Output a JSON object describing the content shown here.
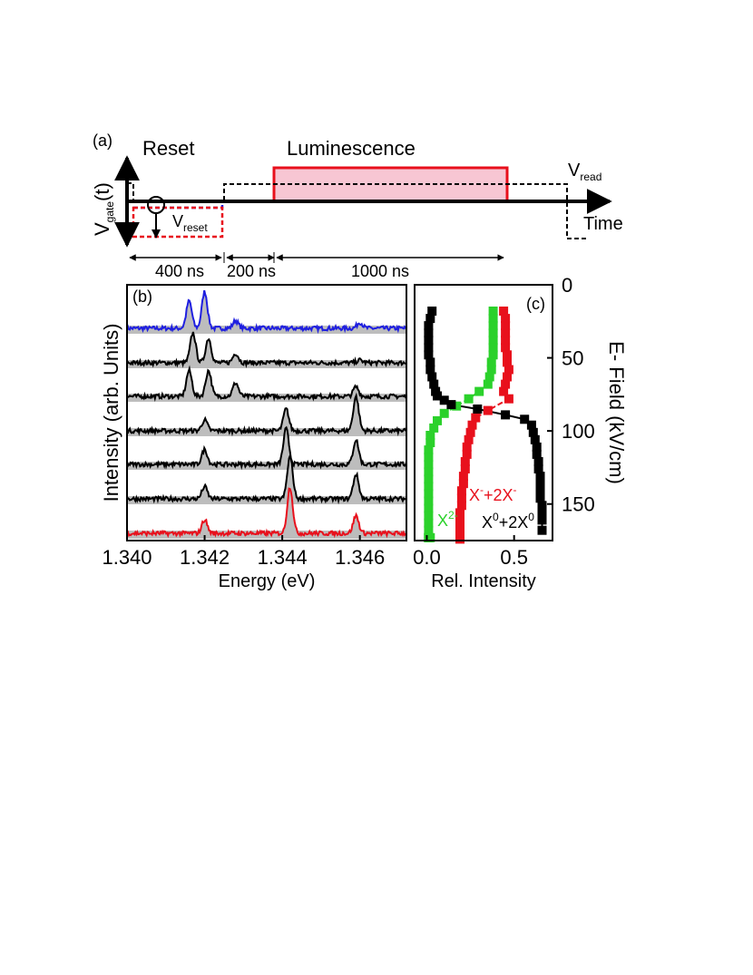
{
  "colors": {
    "blue": "#1f1fe0",
    "red": "#e8101c",
    "green": "#2bd12b",
    "black": "#000000",
    "gray_fill": "#bdbdbd",
    "pink_fill": "#f7c6d3"
  },
  "panel_a": {
    "label": "(a)",
    "reset_title": "Reset",
    "luminescence_title": "Luminescence",
    "y_axis": {
      "main": "V",
      "sub": "gate",
      "tail": "(t)"
    },
    "v_read": {
      "main": "V",
      "sub": "read"
    },
    "v_reset": {
      "main": "V",
      "sub": "reset"
    },
    "time_label": "Time",
    "durations": [
      "400 ns",
      "200 ns",
      "1000 ns"
    ],
    "duration_values_ns": [
      400,
      200,
      1000
    ]
  },
  "chart_data": [
    {
      "type": "line",
      "panel": "(b)",
      "xlabel": "Energy (eV)",
      "ylabel": "Intensity (arb. Units)",
      "xlim": [
        1.34,
        1.3472
      ],
      "x_ticks": [
        "1.340",
        "1.342",
        "1.344",
        "1.346"
      ],
      "x_tick_values": [
        1.34,
        1.342,
        1.344,
        1.346
      ],
      "series": [
        {
          "color": "blue",
          "peaks": [
            [
              1.3416,
              1.0
            ],
            [
              1.342,
              1.35
            ],
            [
              1.3428,
              0.28
            ],
            [
              1.346,
              0.22
            ]
          ]
        },
        {
          "color": "black",
          "peaks": [
            [
              1.3417,
              1.1
            ],
            [
              1.3421,
              0.9
            ],
            [
              1.3428,
              0.35
            ],
            [
              1.346,
              0.1
            ]
          ]
        },
        {
          "color": "black",
          "peaks": [
            [
              1.3416,
              0.95
            ],
            [
              1.3421,
              0.95
            ],
            [
              1.3428,
              0.5
            ],
            [
              1.3459,
              0.35
            ]
          ]
        },
        {
          "color": "black",
          "peaks": [
            [
              1.342,
              0.4
            ],
            [
              1.3441,
              0.8
            ],
            [
              1.3459,
              1.25
            ]
          ]
        },
        {
          "color": "black",
          "peaks": [
            [
              1.342,
              0.55
            ],
            [
              1.3441,
              1.3
            ],
            [
              1.3459,
              0.9
            ]
          ]
        },
        {
          "color": "black",
          "peaks": [
            [
              1.342,
              0.45
            ],
            [
              1.3442,
              1.55
            ],
            [
              1.3459,
              0.9
            ]
          ]
        },
        {
          "color": "red",
          "peaks": [
            [
              1.342,
              0.5
            ],
            [
              1.3442,
              1.7
            ],
            [
              1.3459,
              0.65
            ]
          ]
        }
      ]
    },
    {
      "type": "scatter",
      "panel": "(c)",
      "xlabel": "Rel. Intensity",
      "ylabel": "E- Field (kV/cm)",
      "xlim": [
        -0.07,
        0.72
      ],
      "ylim": [
        0,
        175
      ],
      "y_inverted": true,
      "y_axis_side": "right",
      "x_ticks": [
        "0.0",
        "0.5"
      ],
      "x_tick_values": [
        0.0,
        0.5
      ],
      "y_ticks": [
        "0",
        "50",
        "100",
        "150"
      ],
      "y_tick_values": [
        0,
        50,
        100,
        150
      ],
      "annotations": [
        {
          "color": "red",
          "text": "X",
          "sup": "-",
          "text2": "+2X",
          "sup2": "-"
        },
        {
          "color": "green",
          "text": "X",
          "sup": "2-"
        },
        {
          "color": "black",
          "text": "X",
          "sup": "0",
          "text2": "+2X",
          "sup2": "0"
        }
      ],
      "series": [
        {
          "name": "X2-",
          "color": "green",
          "x": [
            0.38,
            0.38,
            0.38,
            0.38,
            0.38,
            0.38,
            0.38,
            0.37,
            0.37,
            0.36,
            0.35,
            0.3,
            0.24,
            0.17,
            0.1,
            0.06,
            0.04,
            0.02,
            0.02,
            0.01,
            0.01,
            0.01,
            0.01,
            0.01,
            0.01,
            0.01,
            0.01,
            0.01,
            0.01,
            0.01,
            0.01,
            0.01,
            0.01,
            0.01,
            0.01,
            0.02
          ],
          "y": [
            18,
            23,
            28,
            33,
            38,
            43,
            48,
            53,
            58,
            63,
            68,
            73,
            78,
            83,
            88,
            93,
            98,
            103,
            108,
            113,
            118,
            123,
            128,
            133,
            138,
            143,
            148,
            153,
            158,
            163,
            168,
            173,
            173,
            173,
            173,
            173
          ]
        },
        {
          "name": "X-+2X-",
          "color": "red",
          "x": [
            0.44,
            0.45,
            0.45,
            0.45,
            0.45,
            0.45,
            0.46,
            0.46,
            0.47,
            0.46,
            0.45,
            0.44,
            0.47,
            0.35,
            0.28,
            0.26,
            0.25,
            0.24,
            0.23,
            0.23,
            0.22,
            0.22,
            0.21,
            0.21,
            0.2,
            0.2,
            0.2,
            0.19,
            0.19,
            0.19,
            0.19,
            0.19
          ],
          "y": [
            18,
            23,
            28,
            33,
            38,
            43,
            48,
            53,
            58,
            63,
            68,
            73,
            78,
            86,
            91,
            96,
            101,
            106,
            111,
            116,
            121,
            126,
            131,
            136,
            141,
            146,
            151,
            156,
            161,
            166,
            171,
            174
          ]
        },
        {
          "name": "X0+2X0",
          "color": "black",
          "x": [
            0.03,
            0.02,
            0.01,
            0.01,
            0.01,
            0.01,
            0.01,
            0.02,
            0.02,
            0.03,
            0.04,
            0.05,
            0.06,
            0.1,
            0.14,
            0.29,
            0.45,
            0.56,
            0.6,
            0.61,
            0.62,
            0.63,
            0.63,
            0.64,
            0.64,
            0.65,
            0.65,
            0.65,
            0.65,
            0.66,
            0.66,
            0.66,
            0.66
          ],
          "y": [
            18,
            23,
            28,
            33,
            38,
            43,
            48,
            53,
            58,
            63,
            68,
            73,
            76,
            79,
            82,
            85,
            89,
            92,
            96,
            101,
            106,
            111,
            116,
            121,
            126,
            131,
            136,
            141,
            146,
            151,
            156,
            161,
            168
          ]
        }
      ]
    }
  ]
}
